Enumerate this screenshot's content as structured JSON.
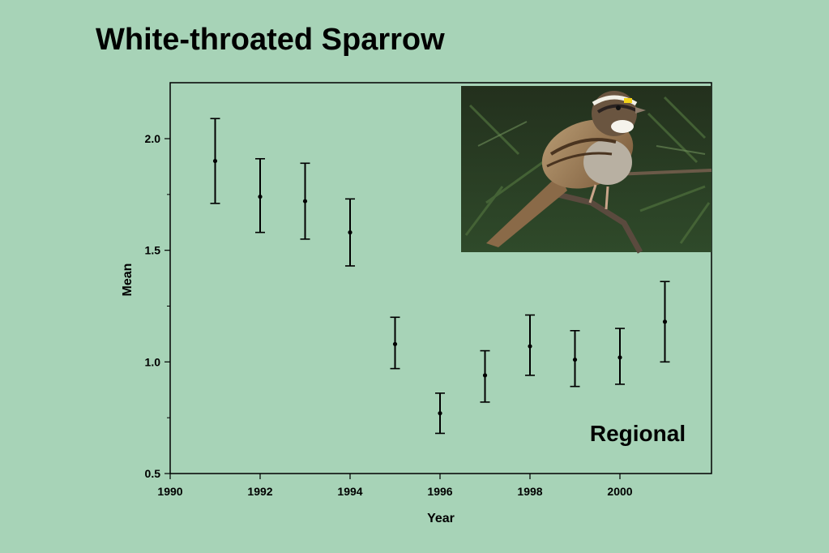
{
  "slide": {
    "title": "White-throated Sparrow",
    "photo_subject": "white-throated-sparrow-photo"
  },
  "chart_data": {
    "type": "scatter",
    "title": "White-throated Sparrow",
    "xlabel": "Year",
    "ylabel": "Mean",
    "xlim": [
      1990,
      2002
    ],
    "ylim": [
      0.5,
      2.25
    ],
    "x_ticks": [
      1990,
      1992,
      1994,
      1996,
      1998,
      2000
    ],
    "x_tick_labels": [
      "1990",
      "1992",
      "1994",
      "1996",
      "1998",
      "2000"
    ],
    "y_ticks": [
      0.5,
      1.0,
      1.5,
      2.0
    ],
    "y_tick_labels": [
      "0.5",
      "1.0",
      "1.5",
      "2.0"
    ],
    "y_minor_ticks": [
      0.75,
      1.25,
      1.75
    ],
    "grid": false,
    "annotation": "Regional",
    "series": [
      {
        "x": [
          1991,
          1992,
          1993,
          1994,
          1995,
          1996,
          1997,
          1998,
          1999,
          2000,
          2001
        ],
        "mean": [
          1.9,
          1.74,
          1.72,
          1.58,
          1.08,
          0.77,
          0.94,
          1.07,
          1.01,
          1.02,
          1.18
        ],
        "lower": [
          1.71,
          1.58,
          1.55,
          1.43,
          0.97,
          0.68,
          0.82,
          0.94,
          0.89,
          0.9,
          1.0
        ],
        "upper": [
          2.09,
          1.91,
          1.89,
          1.73,
          1.2,
          0.86,
          1.05,
          1.21,
          1.14,
          1.15,
          1.36
        ]
      }
    ]
  }
}
